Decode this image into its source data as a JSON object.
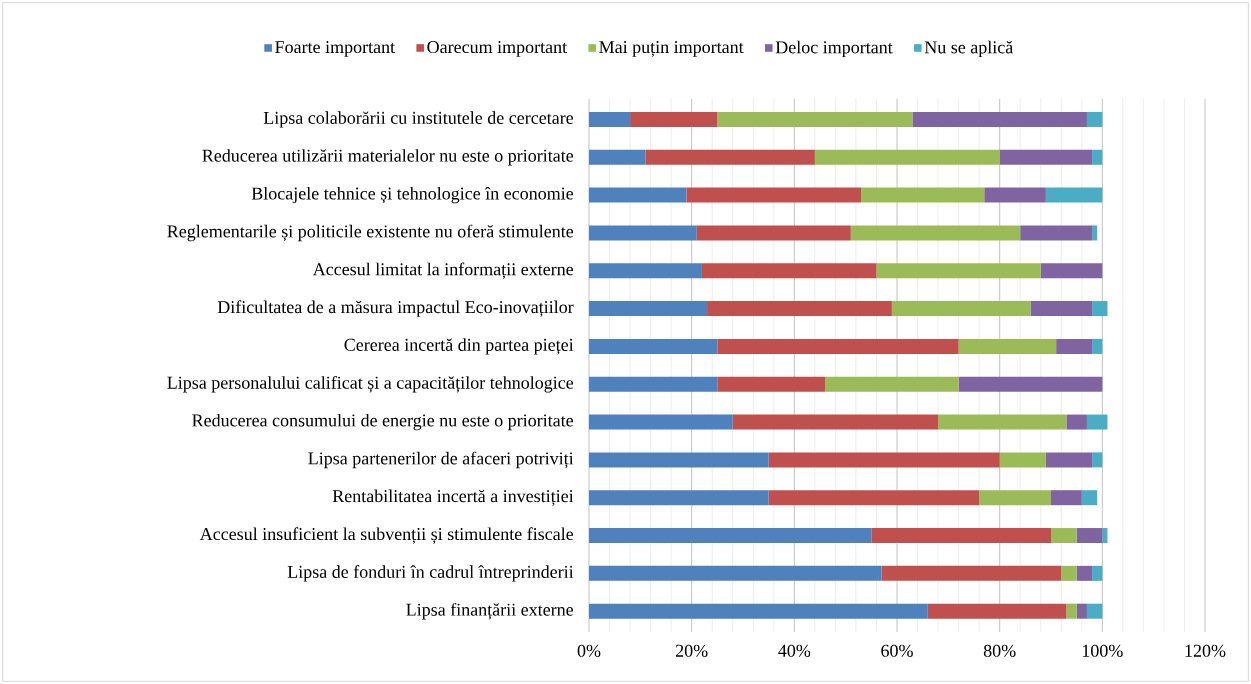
{
  "chart_data": {
    "type": "bar",
    "orientation": "horizontal",
    "stacked": true,
    "categories": [
      "Lipsa colaborării cu institutele de cercetare",
      "Reducerea utilizării materialelor nu este o prioritate",
      "Blocajele tehnice și tehnologice în economie",
      "Reglementarile și politicile existente nu oferă stimulente",
      "Accesul limitat la informații externe",
      "Dificultatea de a măsura impactul Eco-inovațiilor",
      "Cererea incertă din partea pieței",
      "Lipsa personalului calificat și a capacităților tehnologice",
      "Reducerea consumului de energie nu este o prioritate",
      "Lipsa partenerilor de afaceri potriviți",
      "Rentabilitatea incertă a investiției",
      "Accesul insuficient la subvenții și stimulente fiscale",
      "Lipsa de fonduri în cadrul întreprinderii",
      "Lipsa finanțării externe"
    ],
    "series": [
      {
        "name": "Foarte important",
        "color": "#4f81bd",
        "values": [
          8,
          11,
          19,
          21,
          22,
          23,
          25,
          25,
          28,
          35,
          35,
          55,
          57,
          66
        ]
      },
      {
        "name": "Oarecum important",
        "color": "#c0504d",
        "values": [
          17,
          33,
          34,
          30,
          34,
          36,
          47,
          21,
          40,
          45,
          41,
          35,
          35,
          27
        ]
      },
      {
        "name": "Mai puțin important",
        "color": "#9bbb59",
        "values": [
          38,
          36,
          24,
          33,
          32,
          27,
          19,
          26,
          25,
          9,
          14,
          5,
          3,
          2
        ]
      },
      {
        "name": "Deloc important",
        "color": "#8064a2",
        "values": [
          34,
          18,
          12,
          14,
          12,
          12,
          7,
          28,
          4,
          9,
          6,
          5,
          3,
          2
        ]
      },
      {
        "name": "Nu se aplică",
        "color": "#4bacc6",
        "values": [
          3,
          2,
          11,
          1,
          0,
          3,
          2,
          0,
          4,
          2,
          3,
          1,
          2,
          3
        ]
      }
    ],
    "xlim": [
      0,
      120
    ],
    "xticks": [
      {
        "value": 0,
        "label": "0%"
      },
      {
        "value": 20,
        "label": "20%"
      },
      {
        "value": 40,
        "label": "40%"
      },
      {
        "value": 60,
        "label": "60%"
      },
      {
        "value": 80,
        "label": "80%"
      },
      {
        "value": 100,
        "label": "100%"
      },
      {
        "value": 120,
        "label": "120%"
      }
    ],
    "grid": "x",
    "legend": "top"
  }
}
